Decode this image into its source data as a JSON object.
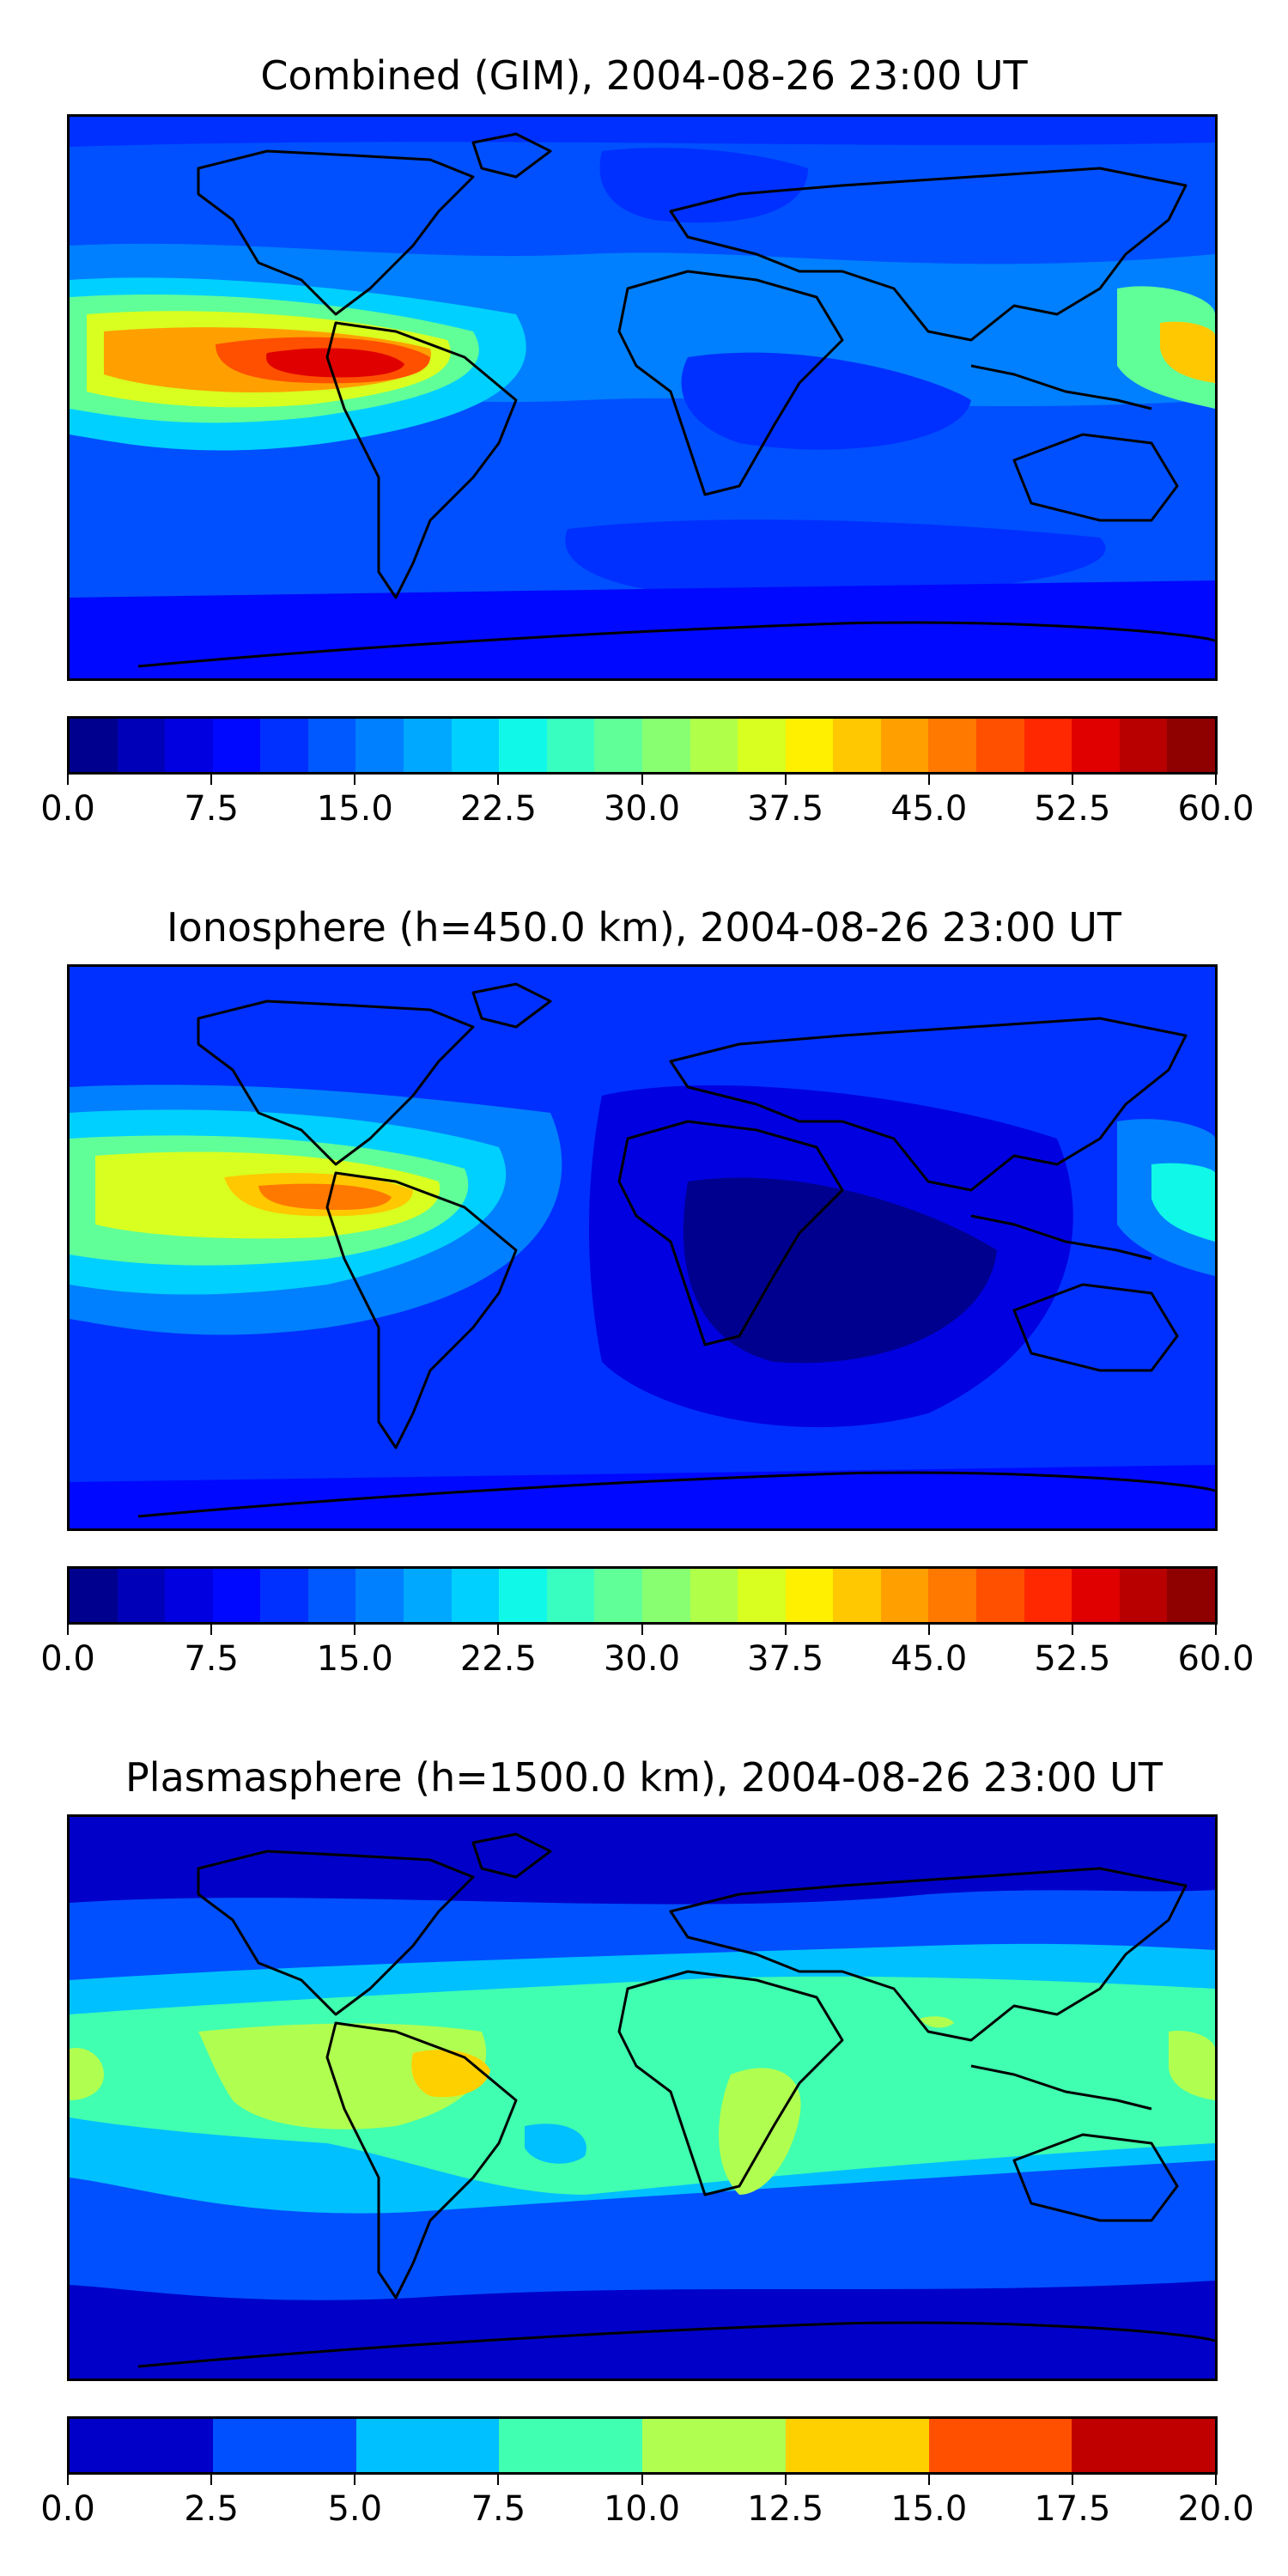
{
  "panels": [
    {
      "title": "Combined (GIM), 2004-08-26 23:00 UT",
      "colorbar": {
        "min": 0,
        "max": 60,
        "levels": 24,
        "colors": [
          "#00008f",
          "#0000b8",
          "#0000e0",
          "#0008ff",
          "#0030ff",
          "#0058ff",
          "#0080ff",
          "#00a8ff",
          "#00d0ff",
          "#10f8e8",
          "#38ffc0",
          "#60ff98",
          "#88ff70",
          "#b0ff48",
          "#d8ff20",
          "#fff000",
          "#ffc800",
          "#ffa000",
          "#ff7800",
          "#ff5000",
          "#ff2800",
          "#e00000",
          "#b80000",
          "#8f0000"
        ],
        "tick_labels": [
          "0.0",
          "7.5",
          "15.0",
          "22.5",
          "30.0",
          "37.5",
          "45.0",
          "52.5",
          "60.0"
        ]
      }
    },
    {
      "title": "Ionosphere  (h=450.0 km), 2004-08-26 23:00 UT",
      "colorbar": {
        "min": 0,
        "max": 60,
        "levels": 24,
        "colors": [
          "#00008f",
          "#0000b8",
          "#0000e0",
          "#0008ff",
          "#0030ff",
          "#0058ff",
          "#0080ff",
          "#00a8ff",
          "#00d0ff",
          "#10f8e8",
          "#38ffc0",
          "#60ff98",
          "#88ff70",
          "#b0ff48",
          "#d8ff20",
          "#fff000",
          "#ffc800",
          "#ffa000",
          "#ff7800",
          "#ff5000",
          "#ff2800",
          "#e00000",
          "#b80000",
          "#8f0000"
        ],
        "tick_labels": [
          "0.0",
          "7.5",
          "15.0",
          "22.5",
          "30.0",
          "37.5",
          "45.0",
          "52.5",
          "60.0"
        ]
      }
    },
    {
      "title": "Plasmasphere (h=1500.0 km), 2004-08-26 23:00 UT",
      "colorbar": {
        "min": 0,
        "max": 20,
        "levels": 8,
        "colors": [
          "#0000c8",
          "#0050ff",
          "#00c0ff",
          "#40ffb0",
          "#b0ff50",
          "#ffd000",
          "#ff5000",
          "#c00000"
        ],
        "tick_labels": [
          "0.0",
          "2.5",
          "5.0",
          "7.5",
          "10.0",
          "12.5",
          "15.0",
          "17.5",
          "20.0"
        ]
      }
    }
  ]
}
